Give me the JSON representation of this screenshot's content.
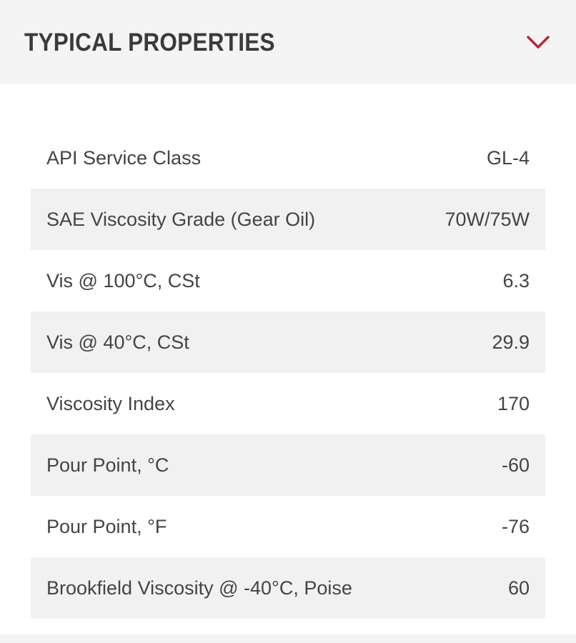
{
  "panel": {
    "title": "TYPICAL PROPERTIES",
    "toggle_icon": "chevron-down-icon",
    "accent_color": "#c0243a",
    "expanded": true
  },
  "properties": [
    {
      "label": "API Service Class",
      "value": "GL-4"
    },
    {
      "label": "SAE Viscosity Grade (Gear Oil)",
      "value": "70W/75W"
    },
    {
      "label": "Vis @ 100°C, CSt",
      "value": "6.3"
    },
    {
      "label": "Vis @ 40°C, CSt",
      "value": "29.9"
    },
    {
      "label": "Viscosity Index",
      "value": "170"
    },
    {
      "label": "Pour Point, °C",
      "value": "-60"
    },
    {
      "label": "Pour Point, °F",
      "value": "-76"
    },
    {
      "label": "Brookfield Viscosity @ -40°C, Poise",
      "value": "60"
    }
  ]
}
